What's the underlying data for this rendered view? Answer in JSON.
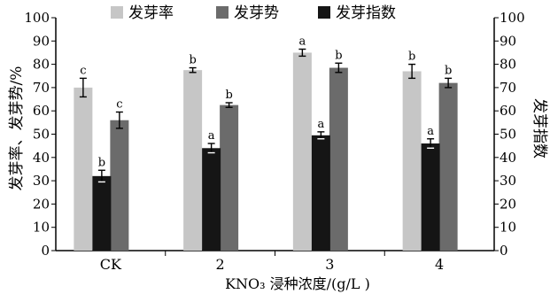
{
  "chart_data": {
    "type": "bar",
    "categories": [
      "CK",
      "2",
      "3",
      "4"
    ],
    "xlabel": "KNO₃ 浸种浓度/(g/L )",
    "ylabel_left": "发芽率、发芽势/%",
    "ylabel_right": "发芽指数",
    "ylim": [
      0,
      100
    ],
    "yticks": [
      0,
      10,
      20,
      30,
      40,
      50,
      60,
      70,
      80,
      90,
      100
    ],
    "legend_position": "top",
    "grid": false,
    "series": [
      {
        "name": "发芽率",
        "color": "#c6c6c6",
        "values": [
          70,
          77.5,
          85,
          77
        ],
        "errors": [
          4,
          1,
          1.5,
          3
        ],
        "labels": [
          "c",
          "b",
          "a",
          "b"
        ]
      },
      {
        "name": "发芽势",
        "color": "#6b6b6b",
        "values": [
          56,
          62.5,
          78.5,
          72
        ],
        "errors": [
          3.5,
          1,
          2,
          2
        ],
        "labels": [
          "c",
          "b",
          "b",
          "b"
        ]
      },
      {
        "name": "发芽指数",
        "color": "#151515",
        "values": [
          32,
          44,
          49.5,
          46
        ],
        "errors": [
          2.5,
          2,
          1.5,
          2
        ],
        "labels": [
          "b",
          "a",
          "a",
          "a"
        ]
      }
    ]
  }
}
